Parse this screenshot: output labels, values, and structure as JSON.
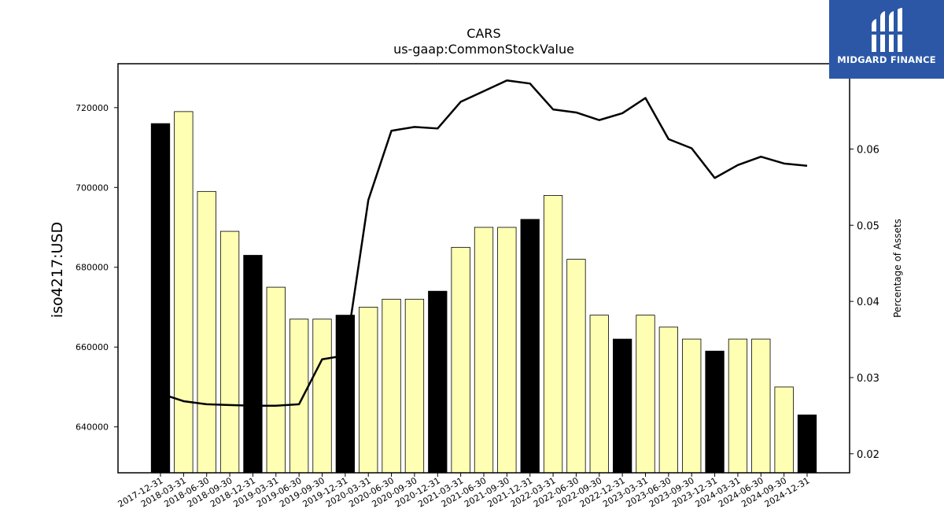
{
  "chart_data": {
    "type": "bar",
    "title": "CARS",
    "subtitle": "us-gaap:CommonStockValue",
    "ylabel": "iso4217:USD",
    "y2label": "Percentage of Assets",
    "categories": [
      "2017-12-31",
      "2018-03-31",
      "2018-06-30",
      "2018-09-30",
      "2018-12-31",
      "2019-03-31",
      "2019-06-30",
      "2019-09-30",
      "2019-12-31",
      "2020-03-31",
      "2020-06-30",
      "2020-09-30",
      "2020-12-31",
      "2021-03-31",
      "2021-06-30",
      "2021-09-30",
      "2021-12-31",
      "2022-03-31",
      "2022-06-30",
      "2022-09-30",
      "2022-12-31",
      "2023-03-31",
      "2023-06-30",
      "2023-09-30",
      "2023-12-31",
      "2024-03-31",
      "2024-06-30",
      "2024-09-30",
      "2024-12-31"
    ],
    "series": [
      {
        "kind": "bar",
        "values": [
          716000,
          719000,
          699000,
          689000,
          683000,
          675000,
          667000,
          667000,
          668000,
          670000,
          672000,
          672000,
          674000,
          685000,
          690000,
          690000,
          692000,
          698000,
          682000,
          668000,
          662000,
          668000,
          665000,
          662000,
          659000,
          662000,
          662000,
          650000,
          643000
        ],
        "colors": [
          "#000000",
          "#ffffb3",
          "#ffffb3",
          "#ffffb3",
          "#000000",
          "#ffffb3",
          "#ffffb3",
          "#ffffb3",
          "#000000",
          "#ffffb3",
          "#ffffb3",
          "#ffffb3",
          "#000000",
          "#ffffb3",
          "#ffffb3",
          "#ffffb3",
          "#000000",
          "#ffffb3",
          "#ffffb3",
          "#ffffb3",
          "#000000",
          "#ffffb3",
          "#ffffb3",
          "#ffffb3",
          "#000000",
          "#ffffb3",
          "#ffffb3",
          "#ffffb3",
          "#000000"
        ]
      },
      {
        "kind": "line",
        "axis": "right",
        "color": "#000000",
        "values": [
          0.0279,
          0.0269,
          0.0265,
          0.0264,
          0.0263,
          0.0263,
          0.0265,
          0.0324,
          0.0329,
          0.0533,
          0.0624,
          0.0629,
          0.0627,
          0.0662,
          0.0676,
          0.069,
          0.0686,
          0.0652,
          0.0648,
          0.0638,
          0.0647,
          0.0667,
          0.0613,
          0.0601,
          0.0562,
          0.0579,
          0.059,
          0.0581,
          0.0578
        ]
      }
    ],
    "ylim": [
      628500,
      731000
    ],
    "y2lim": [
      0.0175,
      0.0712
    ],
    "yticks": [
      640000,
      660000,
      680000,
      700000,
      720000
    ],
    "y2ticks": [
      0.02,
      0.03,
      0.04,
      0.05,
      0.06
    ],
    "grid": false
  },
  "logo": {
    "name": "MIDGARD FINANCE",
    "bg_color": "#2b57a6"
  }
}
